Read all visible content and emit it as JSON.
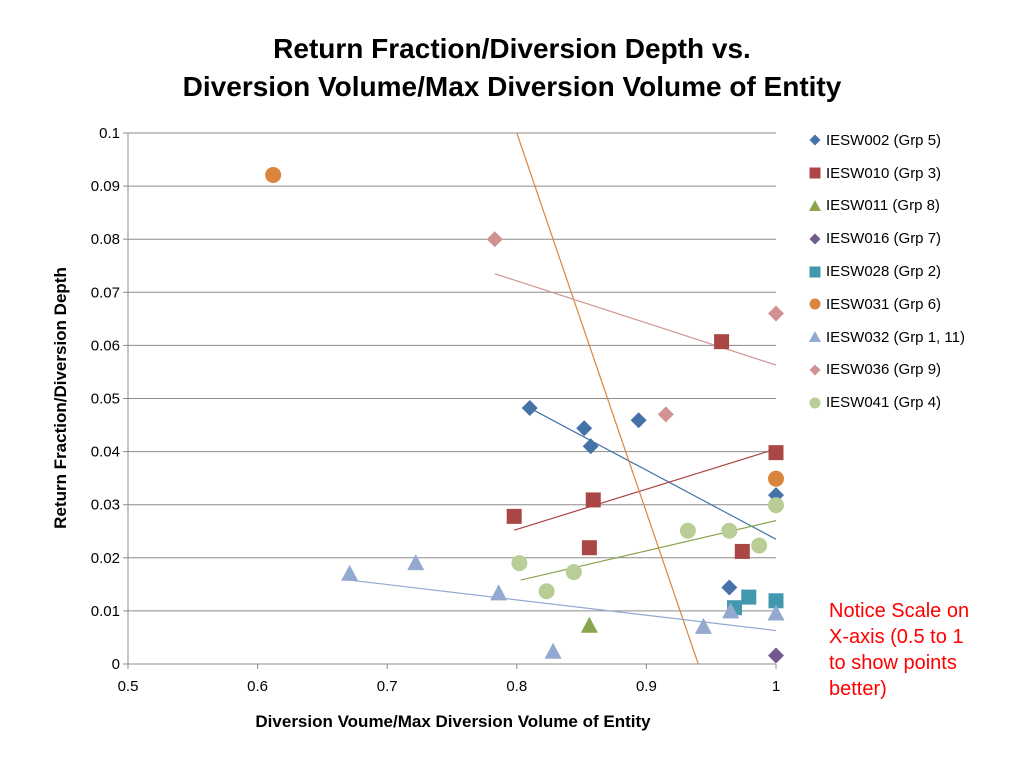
{
  "chart_data": {
    "type": "scatter",
    "title_lines": [
      "Return Fraction/Diversion Depth vs.",
      "Diversion Volume/Max Diversion Volume of Entity"
    ],
    "xlabel": "Diversion Voume/Max Diversion Volume of Entity",
    "ylabel": "Return Fraction/Diversion Depth",
    "xlim": [
      0.5,
      1
    ],
    "ylim": [
      0,
      0.1
    ],
    "x_ticks": [
      "0.5",
      "0.6",
      "0.7",
      "0.8",
      "0.9",
      "1"
    ],
    "y_ticks": [
      "0",
      "0.01",
      "0.02",
      "0.03",
      "0.04",
      "0.05",
      "0.06",
      "0.07",
      "0.08",
      "0.09",
      "0.1"
    ],
    "grid": "horizontal",
    "legend_position": "right",
    "series": [
      {
        "name": "IESW002 (Grp 5)",
        "marker": "diamond",
        "color": "#4572a7",
        "points": [
          [
            0.81,
            0.0482
          ],
          [
            0.852,
            0.0444
          ],
          [
            0.857,
            0.041
          ],
          [
            0.894,
            0.0459
          ],
          [
            0.964,
            0.0144
          ],
          [
            1.0,
            0.0318
          ]
        ],
        "trend": [
          [
            0.81,
            0.0482
          ],
          [
            1.0,
            0.0235
          ]
        ]
      },
      {
        "name": "IESW010 (Grp 3)",
        "marker": "square",
        "color": "#aa4643",
        "points": [
          [
            0.798,
            0.0278
          ],
          [
            0.856,
            0.0219
          ],
          [
            0.859,
            0.0309
          ],
          [
            0.958,
            0.0607
          ],
          [
            0.974,
            0.0212
          ],
          [
            1.0,
            0.0398
          ]
        ],
        "trend": [
          [
            0.798,
            0.0252
          ],
          [
            1.0,
            0.0405
          ]
        ]
      },
      {
        "name": "IESW011 (Grp 8)",
        "marker": "triangle",
        "color": "#89a54e",
        "points": [
          [
            0.856,
            0.0072
          ]
        ],
        "trend": [
          [
            0.803,
            0.0158
          ],
          [
            1.0,
            0.027
          ]
        ]
      },
      {
        "name": "IESW016 (Grp 7)",
        "marker": "diamond",
        "color": "#71588f",
        "points": [
          [
            1.0,
            0.0016
          ]
        ]
      },
      {
        "name": "IESW028 (Grp 2)",
        "marker": "square",
        "color": "#4198af",
        "points": [
          [
            0.968,
            0.0106
          ],
          [
            0.979,
            0.0126
          ],
          [
            1.0,
            0.0119
          ]
        ]
      },
      {
        "name": "IESW031 (Grp 6)",
        "marker": "circle",
        "color": "#db843d",
        "points": [
          [
            0.612,
            0.0921
          ],
          [
            1.0,
            0.0349
          ]
        ],
        "trend": [
          [
            0.8,
            0.1
          ],
          [
            0.94,
            0.0
          ]
        ]
      },
      {
        "name": "IESW032 (Grp 1, 11)",
        "marker": "triangle",
        "color": "#93a9cf",
        "points": [
          [
            0.671,
            0.017
          ],
          [
            0.722,
            0.019
          ],
          [
            0.786,
            0.0133
          ],
          [
            0.828,
            0.0023
          ],
          [
            0.944,
            0.007
          ],
          [
            0.965,
            0.0099
          ],
          [
            1.0,
            0.0095
          ]
        ],
        "trend": [
          [
            0.671,
            0.0158
          ],
          [
            1.0,
            0.0063
          ]
        ]
      },
      {
        "name": "IESW036 (Grp 9)",
        "marker": "diamond",
        "color": "#d19392",
        "points": [
          [
            0.783,
            0.08
          ],
          [
            0.915,
            0.047
          ],
          [
            1.0,
            0.066
          ]
        ],
        "trend": [
          [
            0.783,
            0.0735
          ],
          [
            1.0,
            0.0563
          ]
        ]
      },
      {
        "name": "IESW041 (Grp 4)",
        "marker": "circle",
        "color": "#b9cd96",
        "points": [
          [
            0.802,
            0.019
          ],
          [
            0.823,
            0.0137
          ],
          [
            0.844,
            0.0173
          ],
          [
            0.932,
            0.0251
          ],
          [
            0.964,
            0.0251
          ],
          [
            0.987,
            0.0223
          ],
          [
            1.0,
            0.0299
          ]
        ]
      }
    ]
  },
  "notice": {
    "color": "#ff0000",
    "lines": [
      "Notice Scale on",
      "X-axis (0.5 to 1",
      "to show points",
      "better)"
    ]
  }
}
